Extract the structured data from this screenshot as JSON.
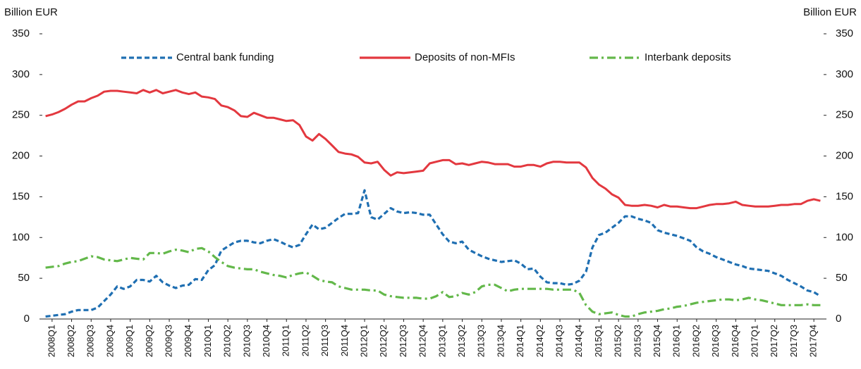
{
  "chart_data": {
    "type": "line",
    "ylabel": "Billion EUR",
    "y2label": "Billion EUR",
    "categories": [
      null,
      "2008Q1",
      null,
      null,
      "2008Q2",
      null,
      null,
      "2008Q3",
      null,
      null,
      "2008Q4",
      null,
      null,
      "2009Q1",
      null,
      null,
      "2009Q2",
      null,
      null,
      "2009Q3",
      null,
      null,
      "2009Q4",
      null,
      null,
      "2010Q1",
      null,
      null,
      "2010Q2",
      null,
      null,
      "2010Q3",
      null,
      null,
      "2010Q4",
      null,
      null,
      "2011Q1",
      null,
      null,
      "2011Q2",
      null,
      null,
      "2011Q3",
      null,
      null,
      "2011Q4",
      null,
      null,
      "2012Q1",
      null,
      null,
      "2012Q2",
      null,
      null,
      "2012Q3",
      null,
      null,
      "2012Q4",
      null,
      null,
      "2013Q1",
      null,
      null,
      "2013Q2",
      null,
      null,
      "2013Q3",
      null,
      null,
      "2013Q4",
      null,
      null,
      "2014Q1",
      null,
      null,
      "2014Q2",
      null,
      null,
      "2014Q3",
      null,
      null,
      "2014Q4",
      null,
      null,
      "2015Q1",
      null,
      null,
      "2015Q2",
      null,
      null,
      "2015Q3",
      null,
      null,
      "2015Q4",
      null,
      null,
      "2016Q1",
      null,
      null,
      "2016Q2",
      null,
      null,
      "2016Q3",
      null,
      null,
      "2016Q4",
      null,
      null,
      "2017Q1",
      null,
      null,
      "2017Q2",
      null,
      null,
      "2017Q3",
      null,
      null,
      "2017Q4",
      null
    ],
    "series": [
      {
        "name": "Central bank funding",
        "color": "#1f6fb2",
        "dash": "dashed",
        "values": [
          3,
          4,
          5,
          6,
          9,
          11,
          11,
          11,
          14,
          22,
          30,
          40,
          37,
          40,
          48,
          48,
          46,
          53,
          45,
          41,
          38,
          41,
          42,
          49,
          48,
          60,
          66,
          84,
          89,
          94,
          96,
          96,
          94,
          93,
          96,
          98,
          95,
          91,
          88,
          91,
          104,
          116,
          110,
          112,
          118,
          124,
          129,
          129,
          130,
          158,
          125,
          122,
          129,
          136,
          132,
          130,
          131,
          130,
          128,
          128,
          116,
          104,
          95,
          93,
          95,
          85,
          81,
          77,
          74,
          72,
          70,
          71,
          72,
          68,
          61,
          62,
          52,
          45,
          44,
          44,
          42,
          43,
          47,
          58,
          88,
          103,
          106,
          112,
          118,
          126,
          126,
          123,
          121,
          118,
          109,
          106,
          104,
          102,
          99,
          96,
          88,
          83,
          80,
          76,
          73,
          70,
          67,
          65,
          62,
          61,
          60,
          59,
          56,
          53,
          48,
          44,
          40,
          35,
          33,
          28
        ]
      },
      {
        "name": "Deposits of non-MFIs",
        "color": "#e3383f",
        "dash": "solid",
        "values": [
          249,
          251,
          254,
          258,
          263,
          267,
          267,
          271,
          274,
          279,
          280,
          280,
          279,
          278,
          277,
          281,
          278,
          281,
          277,
          279,
          281,
          278,
          276,
          278,
          273,
          272,
          270,
          262,
          260,
          256,
          249,
          248,
          253,
          250,
          247,
          247,
          245,
          243,
          244,
          238,
          224,
          219,
          227,
          221,
          213,
          205,
          203,
          202,
          199,
          192,
          191,
          193,
          183,
          176,
          180,
          179,
          180,
          181,
          182,
          191,
          193,
          195,
          195,
          190,
          191,
          189,
          191,
          193,
          192,
          190,
          190,
          190,
          187,
          187,
          189,
          189,
          187,
          191,
          193,
          193,
          192,
          192,
          192,
          186,
          173,
          165,
          160,
          153,
          149,
          140,
          139,
          139,
          140,
          139,
          137,
          140,
          138,
          138,
          137,
          136,
          136,
          138,
          140,
          141,
          141,
          142,
          144,
          140,
          139,
          138,
          138,
          138,
          139,
          140,
          140,
          141,
          141,
          145,
          147,
          145
        ]
      },
      {
        "name": "Interbank deposits",
        "color": "#63b84a",
        "dash": "dashdot",
        "values": [
          63,
          64,
          65,
          68,
          70,
          71,
          74,
          77,
          76,
          73,
          72,
          71,
          73,
          75,
          74,
          73,
          81,
          81,
          80,
          83,
          85,
          84,
          82,
          86,
          87,
          83,
          76,
          70,
          65,
          63,
          62,
          61,
          61,
          58,
          56,
          54,
          53,
          51,
          54,
          56,
          57,
          53,
          48,
          46,
          45,
          40,
          38,
          36,
          36,
          36,
          35,
          35,
          30,
          28,
          27,
          26,
          26,
          26,
          25,
          25,
          28,
          33,
          27,
          28,
          32,
          30,
          33,
          40,
          42,
          42,
          38,
          34,
          36,
          37,
          37,
          37,
          37,
          37,
          36,
          36,
          36,
          36,
          32,
          17,
          9,
          6,
          7,
          8,
          5,
          3,
          3,
          6,
          8,
          9,
          10,
          12,
          13,
          15,
          16,
          18,
          20,
          21,
          22,
          23,
          24,
          24,
          23,
          24,
          26,
          24,
          23,
          21,
          19,
          17,
          17,
          17,
          17,
          18,
          17,
          17
        ]
      }
    ],
    "ylim": [
      0,
      350
    ],
    "yticks": [
      0,
      50,
      100,
      150,
      200,
      250,
      300,
      350
    ],
    "y2lim": [
      0,
      350
    ],
    "y2ticks": [
      0,
      50,
      100,
      150,
      200,
      250,
      300,
      350
    ],
    "grid": false,
    "legend": "top"
  }
}
